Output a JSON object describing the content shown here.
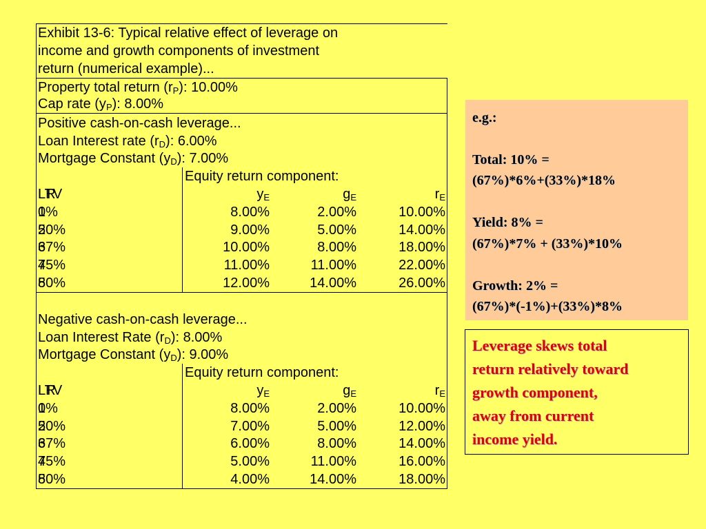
{
  "exhibit": {
    "title": [
      "Exhibit 13-6: Typical relative effect of leverage on",
      "income and growth components of investment",
      "return (numerical example)..."
    ],
    "property_total_return": {
      "label": "Property total return (r",
      "sub": "P",
      "suffix": "): 10.00%"
    },
    "cap_rate": {
      "label": "Cap rate (y",
      "sub": "P",
      "suffix": "): 8.00%"
    },
    "sections": [
      {
        "heading": "Positive cash-on-cash leverage...",
        "loan_rate": {
          "label": "Loan Interest rate (r",
          "sub": "D",
          "suffix": "): 6.00%"
        },
        "mortgage_constant": {
          "label": "Mortgage Constant (y",
          "sub": "D",
          "suffix": "): 7.00%"
        },
        "component_header": "Equity return component:",
        "columns": {
          "lr": "LR",
          "ltv": "LTV",
          "y": "y",
          "g": "g",
          "r": "r",
          "sub": "E"
        },
        "rows": [
          {
            "lr": "1",
            "ltv": "0%",
            "y": "8.00%",
            "g": "2.00%",
            "r": "10.00%"
          },
          {
            "lr": "2",
            "ltv": "50%",
            "y": "9.00%",
            "g": "5.00%",
            "r": "14.00%"
          },
          {
            "lr": "3",
            "ltv": "67%",
            "y": "10.00%",
            "g": "8.00%",
            "r": "18.00%"
          },
          {
            "lr": "4",
            "ltv": "75%",
            "y": "11.00%",
            "g": "11.00%",
            "r": "22.00%"
          },
          {
            "lr": "5",
            "ltv": "80%",
            "y": "12.00%",
            "g": "14.00%",
            "r": "26.00%"
          }
        ]
      },
      {
        "heading": "Negative cash-on-cash leverage...",
        "loan_rate": {
          "label": "Loan Interest Rate (r",
          "sub": "D",
          "suffix": "): 8.00%"
        },
        "mortgage_constant": {
          "label": "Mortgage Constant (y",
          "sub": "D",
          "suffix": "): 9.00%"
        },
        "component_header": "Equity return component:",
        "columns": {
          "lr": "LR",
          "ltv": "LTV",
          "y": "y",
          "g": "g",
          "r": "r",
          "sub": "E"
        },
        "rows": [
          {
            "lr": "1",
            "ltv": "0%",
            "y": "8.00%",
            "g": "2.00%",
            "r": "10.00%"
          },
          {
            "lr": "2",
            "ltv": "50%",
            "y": "7.00%",
            "g": "5.00%",
            "r": "12.00%"
          },
          {
            "lr": "3",
            "ltv": "67%",
            "y": "6.00%",
            "g": "8.00%",
            "r": "14.00%"
          },
          {
            "lr": "4",
            "ltv": "75%",
            "y": "5.00%",
            "g": "11.00%",
            "r": "16.00%"
          },
          {
            "lr": "5",
            "ltv": "80%",
            "y": "4.00%",
            "g": "14.00%",
            "r": "18.00%"
          }
        ]
      }
    ]
  },
  "example_box": {
    "heading": "e.g.:",
    "total": {
      "line1": "Total: 10% =",
      "line2": "(67%)*6%+(33%)*18%"
    },
    "yield": {
      "line1": "Yield: 8% =",
      "line2": "(67%)*7% + (33%)*10%"
    },
    "growth": {
      "line1": "Growth: 2% =",
      "line2": "(67%)*(-1%)+(33%)*8%"
    }
  },
  "note_box": {
    "lines": [
      "Leverage skews total",
      "return relatively toward",
      "growth component,",
      "away from current",
      "income yield."
    ]
  },
  "colors": {
    "background": "#ffff66",
    "example_box": "#ffcc99",
    "note_text": "#e00000"
  }
}
